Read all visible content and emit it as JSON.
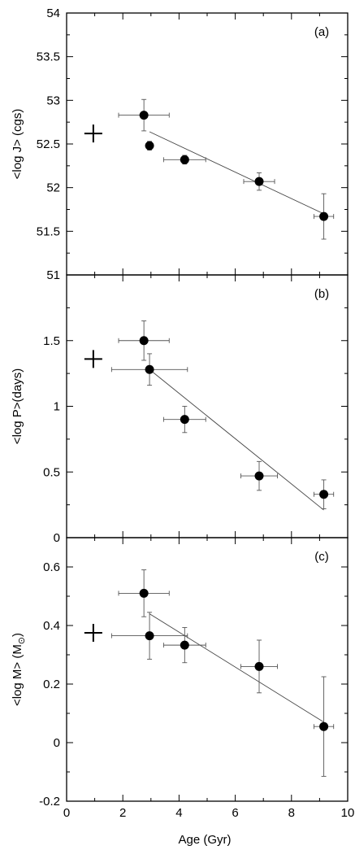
{
  "xlabel": "Age (Gyr)",
  "chart_data": [
    {
      "type": "scatter",
      "panel_label": "(a)",
      "ylabel": "<log J> (cgs)",
      "xlim": [
        0,
        10
      ],
      "ylim": [
        51,
        54
      ],
      "x_ticks": [
        "0",
        "2",
        "4",
        "6",
        "8",
        "10"
      ],
      "y_ticks": [
        "51",
        "51.5",
        "52",
        "52.5",
        "53",
        "53.5",
        "54"
      ],
      "points": [
        {
          "x": 2.75,
          "y": 52.83,
          "xerr": 0.9,
          "yerr": 0.18
        },
        {
          "x": 2.95,
          "y": 52.48,
          "xerr": 0.05,
          "yerr": 0.05
        },
        {
          "x": 4.2,
          "y": 52.32,
          "xerr": 0.75,
          "yerr": 0.05
        },
        {
          "x": 6.85,
          "y": 52.07,
          "xerr": 0.55,
          "yerr": 0.1
        },
        {
          "x": 9.15,
          "y": 51.67,
          "xerr": 0.35,
          "yerr": 0.26
        }
      ],
      "fit_line": {
        "x": [
          2.95,
          9.15
        ],
        "y": [
          52.64,
          51.7
        ]
      },
      "cross_marker": {
        "x": 0.95,
        "y": 52.62
      }
    },
    {
      "type": "scatter",
      "panel_label": "(b)",
      "ylabel": "<log P>(days)",
      "xlim": [
        0,
        10
      ],
      "ylim": [
        0,
        2
      ],
      "y_ticks": [
        "0",
        "0.5",
        "1",
        "1.5"
      ],
      "points": [
        {
          "x": 2.75,
          "y": 1.5,
          "xerr": 0.9,
          "yerr": 0.15
        },
        {
          "x": 2.95,
          "y": 1.28,
          "xerr": 1.35,
          "yerr": 0.12
        },
        {
          "x": 4.2,
          "y": 0.9,
          "xerr": 0.75,
          "yerr": 0.1
        },
        {
          "x": 6.85,
          "y": 0.47,
          "xerr": 0.65,
          "yerr": 0.11
        },
        {
          "x": 9.15,
          "y": 0.33,
          "xerr": 0.35,
          "yerr": 0.11
        }
      ],
      "fit_line": {
        "x": [
          2.95,
          9.15
        ],
        "y": [
          1.28,
          0.21
        ]
      },
      "cross_marker": {
        "x": 0.95,
        "y": 1.36
      }
    },
    {
      "type": "scatter",
      "panel_label": "(c)",
      "ylabel": "<log M> (M",
      "ylabel_tail": ")",
      "xlim": [
        0,
        10
      ],
      "ylim": [
        -0.2,
        0.7
      ],
      "y_ticks": [
        "-0.2",
        "0",
        "0.2",
        "0.4",
        "0.6"
      ],
      "points": [
        {
          "x": 2.75,
          "y": 0.51,
          "xerr": 0.9,
          "yerr": 0.08
        },
        {
          "x": 2.95,
          "y": 0.365,
          "xerr": 1.35,
          "yerr": 0.08
        },
        {
          "x": 4.2,
          "y": 0.333,
          "xerr": 0.75,
          "yerr": 0.06
        },
        {
          "x": 6.85,
          "y": 0.26,
          "xerr": 0.65,
          "yerr": 0.09
        },
        {
          "x": 9.15,
          "y": 0.055,
          "xerr": 0.35,
          "yerr": 0.17
        }
      ],
      "fit_line": {
        "x": [
          2.95,
          9.15
        ],
        "y": [
          0.44,
          0.07
        ]
      },
      "cross_marker": {
        "x": 0.95,
        "y": 0.375
      }
    }
  ]
}
